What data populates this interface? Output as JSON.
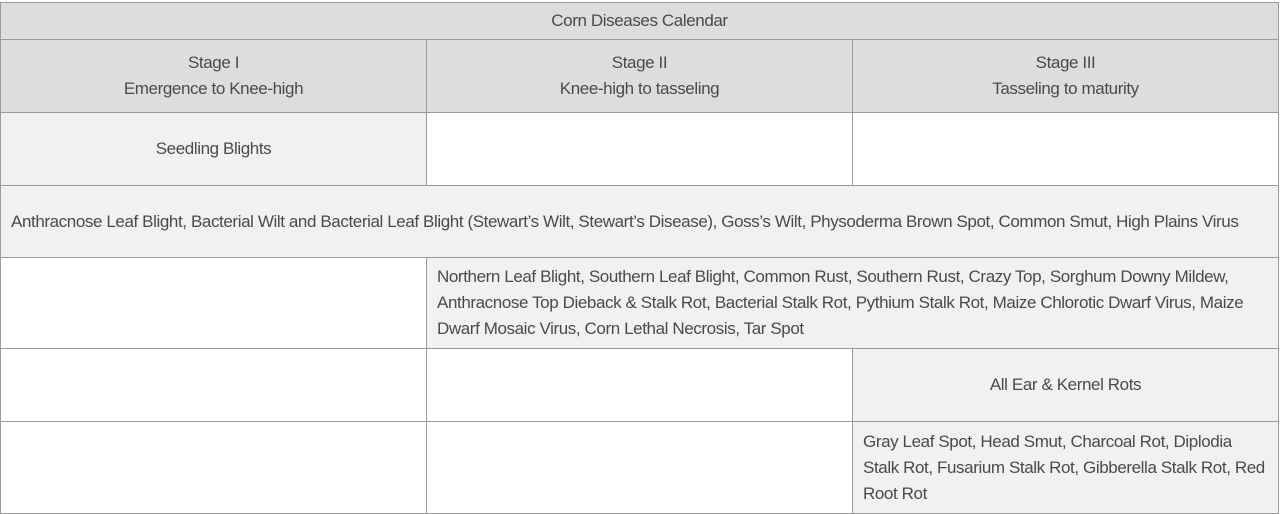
{
  "table": {
    "title": "Corn Diseases Calendar",
    "headers": [
      {
        "stage": "Stage I",
        "range": "Emergence to Knee-high"
      },
      {
        "stage": "Stage II",
        "range": "Knee-high to tasseling"
      },
      {
        "stage": "Stage III",
        "range": "Tasseling to maturity"
      }
    ],
    "rows": [
      {
        "span": "Stage I",
        "text": "Seedling Blights"
      },
      {
        "span": "Stage I–III",
        "text": "Anthracnose Leaf Blight, Bacterial Wilt and Bacterial Leaf Blight (Stewart’s Wilt, Stewart’s Disease), Goss’s Wilt, Physoderma Brown Spot, Common Smut, High Plains Virus"
      },
      {
        "span": "Stage II–III",
        "text": "Northern Leaf Blight, Southern Leaf Blight, Common Rust, Southern Rust, Crazy Top, Sorghum Downy Mildew, Anthracnose Top Dieback & Stalk Rot, Bacterial Stalk Rot, Pythium Stalk Rot, Maize Chlorotic Dwarf Virus, Maize Dwarf Mosaic Virus, Corn Lethal Necrosis, Tar Spot"
      },
      {
        "span": "Stage III",
        "text": "All Ear & Kernel Rots"
      },
      {
        "span": "Stage III",
        "text": "Gray Leaf Spot, Head Smut, Charcoal Rot, Diplodia Stalk Rot, Fusarium Stalk Rot, Gibberella Stalk Rot, Red Root Rot"
      }
    ]
  },
  "colors": {
    "header_bg": "#dcdddf",
    "shaded_cell": "#f0f1f1",
    "border": "#9a9a9a",
    "text": "#4a4a4a"
  }
}
